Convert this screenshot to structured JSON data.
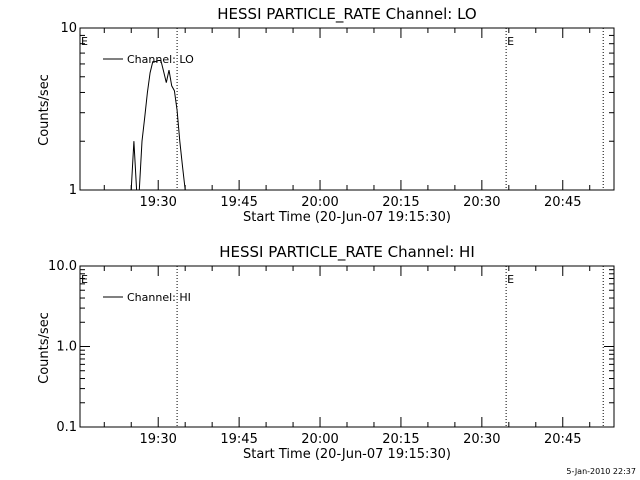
{
  "timestamp": "5-Jan-2010 22:37",
  "chart_data": [
    {
      "type": "line",
      "title": "HESSI PARTICLE_RATE Channel: LO",
      "xlabel": "Start Time (20-Jun-07 19:15:30)",
      "ylabel": "Counts/sec",
      "yscale": "log",
      "ylim": [
        1,
        10
      ],
      "ytick_labels": [
        "1",
        "10"
      ],
      "xlim": [
        "19:15:30",
        "20:54:30"
      ],
      "xtick_labels": [
        "19:30",
        "19:45",
        "20:00",
        "20:15",
        "20:30",
        "20:45"
      ],
      "legend": "Channel: LO",
      "legend_placement": "top-left",
      "markers": [
        {
          "label": "E",
          "time": "19:15:30"
        },
        {
          "label": "",
          "time": "19:33:30"
        },
        {
          "label": "E",
          "time": "20:34:30"
        },
        {
          "label": "",
          "time": "20:52:30"
        }
      ],
      "series": [
        {
          "name": "Channel: LO",
          "points": [
            [
              "19:25:00",
              1
            ],
            [
              "19:25:30",
              2
            ],
            [
              "19:26:00",
              1
            ],
            [
              "19:26:30",
              1
            ],
            [
              "19:27:00",
              2
            ],
            [
              "19:27:30",
              2.8
            ],
            [
              "19:28:00",
              4
            ],
            [
              "19:28:30",
              5.3
            ],
            [
              "19:29:00",
              6.2
            ],
            [
              "19:29:30",
              6.2
            ],
            [
              "19:30:00",
              6.3
            ],
            [
              "19:30:30",
              6.3
            ],
            [
              "19:31:00",
              5.4
            ],
            [
              "19:31:30",
              4.6
            ],
            [
              "19:32:00",
              5.5
            ],
            [
              "19:32:30",
              4.4
            ],
            [
              "19:33:00",
              4.1
            ],
            [
              "19:33:30",
              3.1
            ],
            [
              "19:34:00",
              2
            ],
            [
              "19:34:30",
              1.4
            ],
            [
              "19:35:00",
              1
            ]
          ]
        }
      ]
    },
    {
      "type": "line",
      "title": "HESSI PARTICLE_RATE Channel: HI",
      "xlabel": "Start Time (20-Jun-07 19:15:30)",
      "ylabel": "Counts/sec",
      "yscale": "log",
      "ylim": [
        0.1,
        10
      ],
      "ytick_labels": [
        "0.1",
        "1.0",
        "10.0"
      ],
      "xlim": [
        "19:15:30",
        "20:54:30"
      ],
      "xtick_labels": [
        "19:30",
        "19:45",
        "20:00",
        "20:15",
        "20:30",
        "20:45"
      ],
      "legend": "Channel: HI",
      "legend_placement": "top-left",
      "markers": [
        {
          "label": "E",
          "time": "19:15:30"
        },
        {
          "label": "",
          "time": "19:33:30"
        },
        {
          "label": "E",
          "time": "20:34:30"
        },
        {
          "label": "",
          "time": "20:52:30"
        }
      ],
      "series": [
        {
          "name": "Channel: HI",
          "points": []
        }
      ]
    }
  ]
}
